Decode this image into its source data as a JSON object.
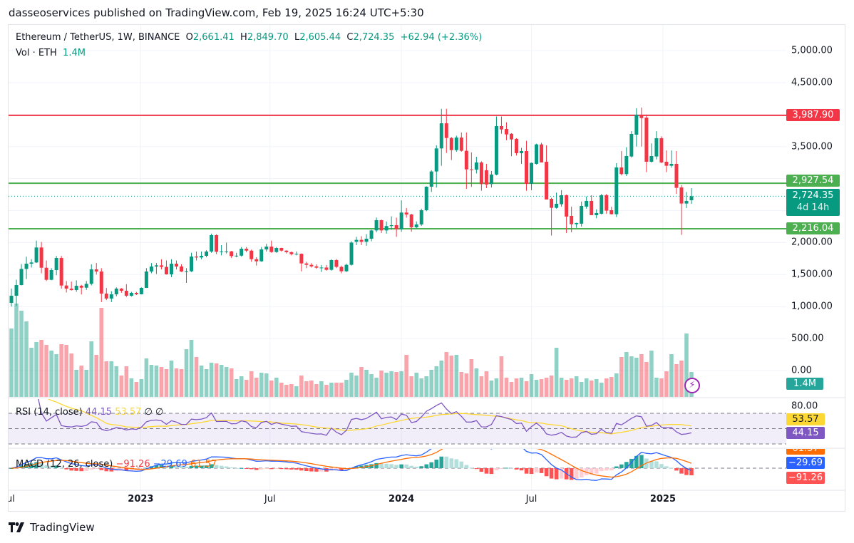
{
  "header": {
    "publisher_line": "dasseoservices published on TradingView.com, Feb 19, 2025 16:24 UTC+5:30"
  },
  "legend": {
    "symbol": "Ethereum / TetherUS, 1W, BINANCE",
    "open_label": "O",
    "open": "2,661.41",
    "high_label": "H",
    "high": "2,849.70",
    "low_label": "L",
    "low": "2,605.44",
    "close_label": "C",
    "close": "2,724.35",
    "change": "+62.94 (+2.36%)",
    "vol_label": "Vol · ETH",
    "vol_value": "1.4M"
  },
  "rsi_legend": {
    "title": "RSI (14, close)",
    "rsi": "44.15",
    "sma": "53.57",
    "extra1": "∅",
    "extra2": "∅"
  },
  "macd_legend": {
    "title": "MACD (12, 26, close)",
    "hist": "−91.26",
    "macd": "−29.69",
    "signal": "61.57"
  },
  "colors": {
    "up": "#089981",
    "down": "#f23645",
    "resistance": "#f23645",
    "support": "#4caf50",
    "rsi": "#7e57c2",
    "rsi_sma": "#fdd835",
    "macd": "#2962ff",
    "signal": "#ff6d00",
    "current_price": "#089981"
  },
  "price_badges": {
    "resistance": "3,987.90",
    "support_upper": "2,927.54",
    "current": "2,724.35",
    "countdown": "4d 14h",
    "support_lower": "2,216.04",
    "volume": "1.4M",
    "rsi_sma": "53.57",
    "rsi": "44.15",
    "rsi_level": "80.00",
    "macd_signal": "61.57",
    "macd": "−29.69",
    "macd_hist": "−91.26"
  },
  "footer": {
    "brand": "TradingView"
  },
  "icons": {
    "alert": "lightning-icon",
    "logo": "tradingview-logo"
  },
  "chart_data": {
    "type": "candlestick",
    "interval": "1W",
    "grid": true,
    "y_ticks": [
      {
        "value": 5000,
        "label": "5,000.00"
      },
      {
        "value": 4500,
        "label": "4,500.00"
      },
      {
        "value": 3500,
        "label": "3,500.00"
      },
      {
        "value": 2000,
        "label": "2,000.00"
      },
      {
        "value": 1500,
        "label": "1,500.00"
      },
      {
        "value": 1000,
        "label": "1,000.00"
      },
      {
        "value": 500,
        "label": "500.00"
      },
      {
        "value": 0,
        "label": "0.00"
      }
    ],
    "x_ticks": [
      {
        "date": "2022-07-01",
        "label": "Jul",
        "bold": false
      },
      {
        "date": "2023-01-01",
        "label": "2023",
        "bold": true
      },
      {
        "date": "2023-07-01",
        "label": "Jul",
        "bold": false
      },
      {
        "date": "2024-01-01",
        "label": "2024",
        "bold": true
      },
      {
        "date": "2024-07-01",
        "label": "Jul",
        "bold": false
      },
      {
        "date": "2025-01-01",
        "label": "2025",
        "bold": true
      }
    ],
    "horizontal_lines": [
      {
        "price": 3987.9,
        "role": "resistance"
      },
      {
        "price": 2927.54,
        "role": "support"
      },
      {
        "price": 2216.04,
        "role": "support"
      }
    ],
    "current_price": 2724.35,
    "rsi_levels": [
      70,
      50,
      30
    ],
    "ohlc": [
      [
        1058,
        1280,
        1000,
        1169
      ],
      [
        1169,
        1420,
        1010,
        1336
      ],
      [
        1336,
        1665,
        1330,
        1588
      ],
      [
        1588,
        1780,
        1430,
        1670
      ],
      [
        1670,
        1740,
        1610,
        1689
      ],
      [
        1689,
        2030,
        1680,
        1923
      ],
      [
        1923,
        2010,
        1520,
        1607
      ],
      [
        1607,
        1720,
        1400,
        1418
      ],
      [
        1418,
        1600,
        1410,
        1570
      ],
      [
        1570,
        1790,
        1490,
        1759
      ],
      [
        1759,
        1790,
        1280,
        1329
      ],
      [
        1329,
        1400,
        1220,
        1280
      ],
      [
        1280,
        1390,
        1250,
        1258
      ],
      [
        1258,
        1410,
        1230,
        1325
      ],
      [
        1325,
        1340,
        1190,
        1295
      ],
      [
        1295,
        1400,
        1260,
        1355
      ],
      [
        1355,
        1660,
        1330,
        1581
      ],
      [
        1581,
        1680,
        1500,
        1548
      ],
      [
        1548,
        1600,
        1070,
        1203
      ],
      [
        1203,
        1290,
        1100,
        1125
      ],
      [
        1125,
        1240,
        1070,
        1191
      ],
      [
        1191,
        1300,
        1160,
        1280
      ],
      [
        1280,
        1290,
        1215,
        1247
      ],
      [
        1247,
        1350,
        1150,
        1169
      ],
      [
        1169,
        1230,
        1155,
        1214
      ],
      [
        1214,
        1230,
        1180,
        1192
      ],
      [
        1192,
        1300,
        1190,
        1292
      ],
      [
        1292,
        1600,
        1290,
        1548
      ],
      [
        1548,
        1680,
        1520,
        1626
      ],
      [
        1626,
        1680,
        1510,
        1644
      ],
      [
        1644,
        1740,
        1580,
        1620
      ],
      [
        1620,
        1720,
        1500,
        1503
      ],
      [
        1503,
        1740,
        1460,
        1670
      ],
      [
        1670,
        1720,
        1580,
        1626
      ],
      [
        1626,
        1660,
        1540,
        1548
      ],
      [
        1548,
        1600,
        1370,
        1551
      ],
      [
        1551,
        1840,
        1540,
        1782
      ],
      [
        1782,
        1860,
        1720,
        1767
      ],
      [
        1767,
        1860,
        1740,
        1793
      ],
      [
        1793,
        1880,
        1770,
        1860
      ],
      [
        1860,
        2140,
        1840,
        2116
      ],
      [
        2116,
        2130,
        1820,
        1856
      ],
      [
        1856,
        1960,
        1800,
        1860
      ],
      [
        1860,
        2000,
        1830,
        1862
      ],
      [
        1862,
        1870,
        1760,
        1789
      ],
      [
        1789,
        1840,
        1770,
        1795
      ],
      [
        1795,
        1930,
        1780,
        1904
      ],
      [
        1904,
        1930,
        1850,
        1874
      ],
      [
        1874,
        1890,
        1700,
        1741
      ],
      [
        1741,
        1770,
        1640,
        1707
      ],
      [
        1707,
        1930,
        1700,
        1893
      ],
      [
        1893,
        1980,
        1860,
        1937
      ],
      [
        1937,
        2030,
        1840,
        1852
      ],
      [
        1852,
        1930,
        1840,
        1915
      ],
      [
        1915,
        1920,
        1860,
        1874
      ],
      [
        1874,
        1880,
        1830,
        1850
      ],
      [
        1850,
        1860,
        1800,
        1819
      ],
      [
        1819,
        1860,
        1800,
        1825
      ],
      [
        1825,
        1830,
        1550,
        1674
      ],
      [
        1674,
        1700,
        1600,
        1652
      ],
      [
        1652,
        1680,
        1610,
        1628
      ],
      [
        1628,
        1660,
        1590,
        1607
      ],
      [
        1607,
        1650,
        1540,
        1610
      ],
      [
        1610,
        1650,
        1560,
        1574
      ],
      [
        1574,
        1740,
        1560,
        1726
      ],
      [
        1726,
        1745,
        1600,
        1620
      ],
      [
        1620,
        1640,
        1520,
        1551
      ],
      [
        1551,
        1670,
        1540,
        1652
      ],
      [
        1652,
        2020,
        1640,
        2000
      ],
      [
        2012,
        2090,
        1960,
        2042
      ],
      [
        2042,
        2100,
        1960,
        2012
      ],
      [
        2012,
        2130,
        1950,
        2060
      ],
      [
        2060,
        2200,
        2020,
        2190
      ],
      [
        2190,
        2390,
        2160,
        2350
      ],
      [
        2350,
        2360,
        2150,
        2190
      ],
      [
        2190,
        2330,
        2140,
        2258
      ],
      [
        2258,
        2410,
        2200,
        2272
      ],
      [
        2272,
        2390,
        2090,
        2209
      ],
      [
        2209,
        2660,
        2170,
        2469
      ],
      [
        2469,
        2540,
        2390,
        2439
      ],
      [
        2439,
        2450,
        2170,
        2239
      ],
      [
        2239,
        2330,
        2220,
        2283
      ],
      [
        2283,
        2530,
        2260,
        2506
      ],
      [
        2506,
        2880,
        2490,
        2873
      ],
      [
        2873,
        3130,
        2790,
        3111
      ],
      [
        3111,
        3520,
        2860,
        3471
      ],
      [
        3471,
        4090,
        3200,
        3864
      ],
      [
        3864,
        4090,
        3400,
        3634
      ],
      [
        3634,
        3650,
        3290,
        3445
      ],
      [
        3445,
        3670,
        3420,
        3642
      ],
      [
        3642,
        3720,
        3420,
        3434
      ],
      [
        3434,
        3720,
        2840,
        3144
      ],
      [
        3144,
        3410,
        2870,
        3140
      ],
      [
        3140,
        3340,
        3080,
        3252
      ],
      [
        3252,
        3270,
        2810,
        2914
      ],
      [
        3130,
        3230,
        2850,
        2907
      ],
      [
        2914,
        3120,
        2860,
        3063
      ],
      [
        3063,
        3970,
        3050,
        3820
      ],
      [
        3820,
        3970,
        3700,
        3768
      ],
      [
        3775,
        3880,
        3600,
        3690
      ],
      [
        3700,
        3710,
        3350,
        3612
      ],
      [
        3620,
        3630,
        3360,
        3397
      ],
      [
        3397,
        3480,
        3230,
        3430
      ],
      [
        3430,
        3590,
        2810,
        2918
      ],
      [
        2918,
        3250,
        2820,
        3245
      ],
      [
        3230,
        3545,
        3220,
        3534
      ],
      [
        3534,
        3560,
        3280,
        3252
      ],
      [
        3262,
        3520,
        2690,
        2673
      ],
      [
        2684,
        2700,
        2110,
        2543
      ],
      [
        2543,
        2780,
        2530,
        2606
      ],
      [
        2599,
        2820,
        2560,
        2740
      ],
      [
        2740,
        2750,
        2150,
        2406
      ],
      [
        2417,
        2560,
        2160,
        2287
      ],
      [
        2287,
        2310,
        2230,
        2306
      ],
      [
        2295,
        2640,
        2250,
        2573
      ],
      [
        2562,
        2720,
        2530,
        2651
      ],
      [
        2651,
        2740,
        2440,
        2428
      ],
      [
        2428,
        2520,
        2380,
        2462
      ],
      [
        2450,
        2760,
        2440,
        2740
      ],
      [
        2740,
        2760,
        2450,
        2499
      ],
      [
        2506,
        2560,
        2440,
        2443
      ],
      [
        2443,
        3240,
        2400,
        3174
      ],
      [
        3174,
        3430,
        3050,
        3070
      ],
      [
        3070,
        3490,
        3040,
        3352
      ],
      [
        3345,
        3740,
        3330,
        3697
      ],
      [
        3686,
        4100,
        3500,
        3998
      ],
      [
        3998,
        4110,
        3500,
        3946
      ],
      [
        3953,
        4000,
        3100,
        3263
      ],
      [
        3263,
        3550,
        3250,
        3352
      ],
      [
        3345,
        3740,
        3300,
        3631
      ],
      [
        3631,
        3660,
        3240,
        3252
      ],
      [
        3263,
        3440,
        3100,
        3200
      ],
      [
        3200,
        3440,
        3170,
        3230
      ],
      [
        3230,
        3430,
        2760,
        2855
      ],
      [
        2862,
        2900,
        2120,
        2610
      ],
      [
        2610,
        2790,
        2540,
        2651
      ],
      [
        2661.41,
        2849.7,
        2605.44,
        2724.35
      ]
    ],
    "volume_millions_eth": [
      3.84,
      5.24,
      4.84,
      4.24,
      2.76,
      3.08,
      3.2,
      2.92,
      2.6,
      2.4,
      2.96,
      2.92,
      2.44,
      1.52,
      1.76,
      1.52,
      3.12,
      2.36,
      5.0,
      2.0,
      2.0,
      1.72,
      1.2,
      1.72,
      1.04,
      0.84,
      1.0,
      2.16,
      1.8,
      1.76,
      1.68,
      1.56,
      2.04,
      1.6,
      1.56,
      2.68,
      3.2,
      2.24,
      1.76,
      1.56,
      1.92,
      1.88,
      1.8,
      1.68,
      1.6,
      1.0,
      1.16,
      0.96,
      1.44,
      1.08,
      1.36,
      1.32,
      0.92,
      1.08,
      0.8,
      0.68,
      0.72,
      0.6,
      1.2,
      0.88,
      0.92,
      0.72,
      0.88,
      0.68,
      0.8,
      0.8,
      0.8,
      0.96,
      1.36,
      1.2,
      1.68,
      1.52,
      1.28,
      1.08,
      1.48,
      1.36,
      1.44,
      1.4,
      1.44,
      2.36,
      1.16,
      1.36,
      1.04,
      1.16,
      1.52,
      1.72,
      2.04,
      2.52,
      2.32,
      2.36,
      1.4,
      1.32,
      2.12,
      1.6,
      1.16,
      1.44,
      0.92,
      1.04,
      2.28,
      1.08,
      0.84,
      1.04,
      1.08,
      0.88,
      1.28,
      0.96,
      1.0,
      1.08,
      1.2,
      2.76,
      1.08,
      0.96,
      1.04,
      1.16,
      0.84,
      1.04,
      0.92,
      1.0,
      0.8,
      1.04,
      1.12,
      1.32,
      2.24,
      2.52,
      2.28,
      2.2,
      2.4,
      1.96,
      2.6,
      1.08,
      1.04,
      1.44,
      2.4,
      1.84,
      2.04,
      3.56,
      1.4
    ]
  }
}
